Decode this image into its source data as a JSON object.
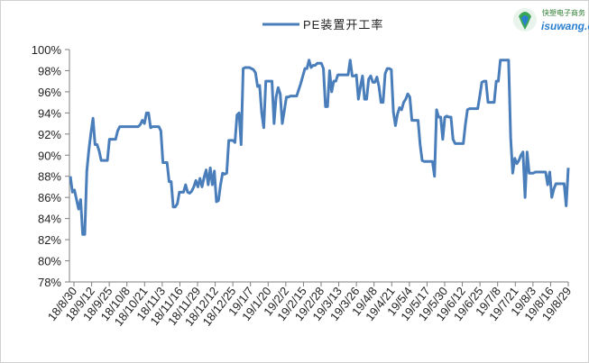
{
  "chart_data": {
    "type": "line",
    "series": [
      {
        "name": "PE装置开工率",
        "color": "#4a7ebb",
        "values": [
          88.0,
          86.5,
          86.7,
          85.8,
          84.9,
          85.8,
          82.5,
          82.5,
          88.5,
          90.5,
          92.1,
          93.5,
          91.0,
          91.0,
          90.4,
          89.5,
          89.5,
          89.5,
          89.5,
          91.5,
          91.5,
          91.5,
          91.5,
          92.3,
          92.7,
          92.7,
          92.7,
          92.7,
          92.7,
          92.7,
          92.7,
          92.7,
          92.7,
          92.7,
          92.9,
          93.3,
          93.0,
          94.0,
          94.0,
          92.6,
          92.7,
          92.7,
          92.7,
          92.7,
          92.3,
          89.3,
          89.3,
          89.3,
          87.5,
          87.5,
          85.1,
          85.1,
          85.4,
          86.5,
          86.5,
          86.5,
          87.2,
          86.5,
          86.4,
          86.6,
          87.0,
          87.6,
          87.0,
          87.8,
          87.0,
          87.9,
          88.6,
          87.2,
          88.8,
          87.2,
          88.5,
          85.6,
          85.7,
          87.2,
          88.3,
          88.2,
          88.3,
          91.4,
          91.4,
          91.4,
          91.2,
          93.8,
          94.0,
          91.0,
          98.2,
          98.3,
          98.3,
          98.3,
          98.2,
          98.1,
          97.8,
          96.5,
          96.6,
          94.0,
          92.6,
          97.0,
          97.0,
          97.0,
          97.0,
          93.0,
          95.5,
          96.4,
          95.8,
          93.0,
          94.2,
          95.5,
          95.5,
          95.6,
          95.6,
          95.6,
          95.6,
          96.2,
          96.8,
          97.5,
          98.2,
          98.2,
          99.0,
          98.3,
          98.5,
          98.5,
          98.7,
          98.7,
          98.7,
          98.2,
          94.6,
          94.6,
          98.0,
          96.0,
          97.0,
          97.0,
          97.6,
          97.6,
          97.6,
          97.6,
          97.6,
          97.6,
          99.0,
          97.5,
          97.5,
          97.6,
          95.3,
          96.5,
          97.5,
          95.3,
          95.3,
          97.2,
          97.5,
          96.9,
          96.9,
          97.4,
          96.5,
          95.0,
          95.0,
          97.7,
          98.2,
          98.2,
          98.1,
          94.1,
          92.8,
          93.9,
          94.5,
          94.3,
          95.0,
          95.3,
          95.8,
          95.5,
          93.3,
          93.3,
          93.3,
          93.3,
          91.0,
          89.5,
          89.4,
          89.4,
          89.4,
          89.4,
          89.4,
          88.0,
          94.3,
          93.6,
          93.6,
          91.5,
          93.6,
          93.7,
          93.6,
          93.6,
          91.5,
          91.1,
          91.1,
          91.1,
          91.1,
          91.1,
          92.9,
          94.3,
          94.4,
          94.4,
          94.4,
          94.4,
          94.4,
          95.6,
          96.9,
          97.0,
          97.0,
          95.0,
          95.0,
          95.0,
          95.0,
          97.0,
          97.0,
          99.0,
          99.0,
          99.0,
          99.0,
          99.0,
          91.7,
          88.3,
          89.7,
          89.2,
          89.5,
          90.0,
          90.3,
          86.0,
          90.3,
          88.3,
          88.3,
          88.3,
          88.4,
          88.4,
          88.4,
          88.4,
          88.4,
          88.4,
          87.2,
          88.4,
          86.0,
          86.8,
          87.3,
          87.3,
          87.3,
          87.3,
          87.3,
          85.2,
          88.8
        ]
      }
    ],
    "x_tick_labels": [
      "18/8/30",
      "18/9/12",
      "18/9/25",
      "18/10/8",
      "18/10/21",
      "18/11/3",
      "18/11/16",
      "18/11/29",
      "18/12/12",
      "18/12/25",
      "19/1/7",
      "19/1/20",
      "19/2/2",
      "19/2/15",
      "19/2/28",
      "19/3/13",
      "19/3/26",
      "19/4/8",
      "19/4/21",
      "19/5/4",
      "19/5/17",
      "19/5/30",
      "19/6/12",
      "19/6/25",
      "19/7/8",
      "19/7/21",
      "19/8/3",
      "19/8/16",
      "19/8/29"
    ],
    "y_ticks": [
      "100%",
      "98%",
      "96%",
      "94%",
      "92%",
      "90%",
      "88%",
      "86%",
      "84%",
      "82%",
      "80%",
      "78%"
    ],
    "ylim": [
      78,
      100
    ],
    "grid": false,
    "legend_position": "top-center"
  },
  "logo": {
    "top_text": "快塑电子商务",
    "bottom_text": "isuwang.com"
  }
}
